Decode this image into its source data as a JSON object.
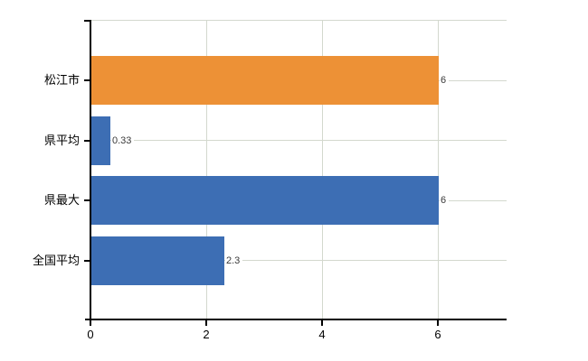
{
  "chart_data": {
    "type": "bar",
    "orientation": "horizontal",
    "title": "",
    "xlabel": "",
    "ylabel": "",
    "categories": [
      "松江市",
      "県平均",
      "県最大",
      "全国平均"
    ],
    "values": [
      6,
      0.33,
      6,
      2.3
    ],
    "value_labels": [
      "6",
      "0.33",
      "6",
      "2.3"
    ],
    "bar_colors": [
      "#ED9136",
      "#3D6EB4",
      "#3D6EB4",
      "#3D6EB4"
    ],
    "highlight_color": "#ED9136",
    "default_bar_color": "#3D6EB4",
    "x_tick_labels": [
      "0",
      "2",
      "4",
      "6"
    ],
    "x_tick_values": [
      0,
      2,
      4,
      6
    ],
    "xlim": [
      0,
      7.2
    ],
    "grid": true,
    "legend": false,
    "gridline_color": "#D3D8CE",
    "axis_color": "#000000",
    "category_label_color": "#000000",
    "tick_label_color": "#000000",
    "value_label_color": "#3A3A3A",
    "background_color": "#FFFFFF"
  }
}
